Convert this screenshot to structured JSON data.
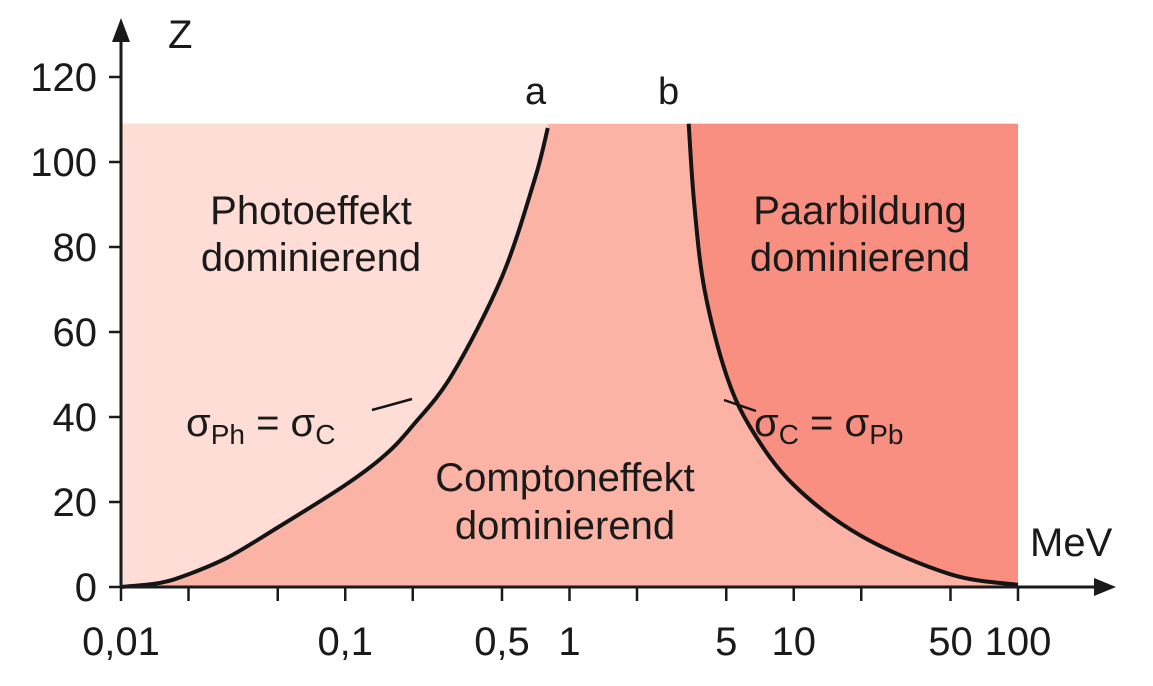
{
  "chart_data": {
    "type": "area",
    "x_scale": "log",
    "xlabel": "MeV",
    "ylabel": "Z",
    "xlim": [
      0.01,
      100
    ],
    "ylim": [
      0,
      120
    ],
    "z_top": 109,
    "x_ticks": [
      0.01,
      0.1,
      0.5,
      1,
      5,
      10,
      50,
      100
    ],
    "x_minor_ticks": [
      0.02,
      0.05,
      0.2,
      2,
      20
    ],
    "x_tick_labels": [
      {
        "x": 0.01,
        "text": "0,01"
      },
      {
        "x": 0.1,
        "text": "0,1"
      },
      {
        "x": 0.5,
        "text": "0,5"
      },
      {
        "x": 1,
        "text": "1"
      },
      {
        "x": 5,
        "text": "5"
      },
      {
        "x": 10,
        "text": "10"
      },
      {
        "x": 50,
        "text": "50"
      },
      {
        "x": 100,
        "text": "100"
      }
    ],
    "y_ticks": [
      0,
      20,
      40,
      60,
      80,
      100,
      120
    ],
    "y_tick_labels": [
      "0",
      "20",
      "40",
      "60",
      "80",
      "100",
      "120"
    ],
    "curves": [
      {
        "name": "a",
        "equation": {
          "lhs": "σ",
          "lhs_sub": "Ph",
          "op": "=",
          "rhs": "σ",
          "rhs_sub": "C"
        },
        "points": [
          [
            0.01,
            0
          ],
          [
            0.015,
            1
          ],
          [
            0.02,
            3
          ],
          [
            0.03,
            7
          ],
          [
            0.05,
            14
          ],
          [
            0.1,
            24
          ],
          [
            0.15,
            31
          ],
          [
            0.2,
            38
          ],
          [
            0.3,
            50
          ],
          [
            0.5,
            73
          ],
          [
            0.7,
            96
          ],
          [
            0.8,
            108
          ]
        ]
      },
      {
        "name": "b",
        "equation": {
          "lhs": "σ",
          "lhs_sub": "C",
          "op": "=",
          "rhs": "σ",
          "rhs_sub": "Pb"
        },
        "points": [
          [
            3.4,
            109
          ],
          [
            3.6,
            90
          ],
          [
            4,
            70
          ],
          [
            5,
            50
          ],
          [
            6.5,
            37
          ],
          [
            10,
            24
          ],
          [
            20,
            12
          ],
          [
            50,
            3
          ],
          [
            100,
            0.5
          ]
        ]
      }
    ],
    "regions": [
      {
        "line1": "Photoeffekt",
        "line2": "dominierend",
        "color": "#fdddd6"
      },
      {
        "line1": "Comptoneffekt",
        "line2": "dominierend",
        "color": "#fbb3a6"
      },
      {
        "line1": "Paarbildung",
        "line2": "dominierend",
        "color": "#f98f80"
      }
    ],
    "axis_color": "#1a1a1a",
    "curve_color": "#141414"
  }
}
